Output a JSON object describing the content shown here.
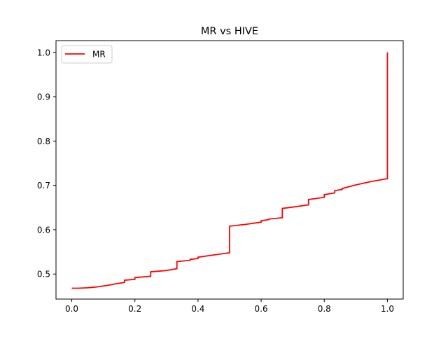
{
  "chart_data": {
    "type": "line",
    "title": "MR vs HIVE",
    "xlabel": "",
    "ylabel": "",
    "xlim": [
      -0.05,
      1.05
    ],
    "ylim": [
      0.4435,
      1.0265
    ],
    "xticks": [
      0.0,
      0.2,
      0.4,
      0.6,
      0.8,
      1.0
    ],
    "xtick_labels": [
      "0.0",
      "0.2",
      "0.4",
      "0.6",
      "0.8",
      "1.0"
    ],
    "yticks": [
      0.5,
      0.6,
      0.7,
      0.8,
      0.9,
      1.0
    ],
    "ytick_labels": [
      "0.5",
      "0.6",
      "0.7",
      "0.8",
      "0.9",
      "1.0"
    ],
    "grid": false,
    "legend": {
      "position": "top-left",
      "entries": [
        "MR"
      ]
    },
    "series": [
      {
        "name": "MR",
        "color": "#ff0000",
        "step": true,
        "x": [
          0.0,
          0.02,
          0.05,
          0.08,
          0.11,
          0.14,
          0.167,
          0.167,
          0.2,
          0.2,
          0.25,
          0.25,
          0.3,
          0.333,
          0.333,
          0.375,
          0.375,
          0.4,
          0.4,
          0.45,
          0.5,
          0.5,
          0.55,
          0.6,
          0.6,
          0.625,
          0.625,
          0.667,
          0.667,
          0.7,
          0.75,
          0.75,
          0.8,
          0.8,
          0.833,
          0.833,
          0.857,
          0.857,
          0.9,
          0.95,
          1.0,
          1.0
        ],
        "y": [
          0.468,
          0.468,
          0.469,
          0.471,
          0.474,
          0.478,
          0.481,
          0.486,
          0.488,
          0.492,
          0.495,
          0.505,
          0.508,
          0.512,
          0.528,
          0.531,
          0.533,
          0.535,
          0.538,
          0.543,
          0.548,
          0.608,
          0.612,
          0.617,
          0.62,
          0.623,
          0.624,
          0.627,
          0.648,
          0.651,
          0.656,
          0.668,
          0.673,
          0.679,
          0.683,
          0.688,
          0.691,
          0.693,
          0.701,
          0.709,
          0.715,
          1.0
        ]
      }
    ]
  }
}
